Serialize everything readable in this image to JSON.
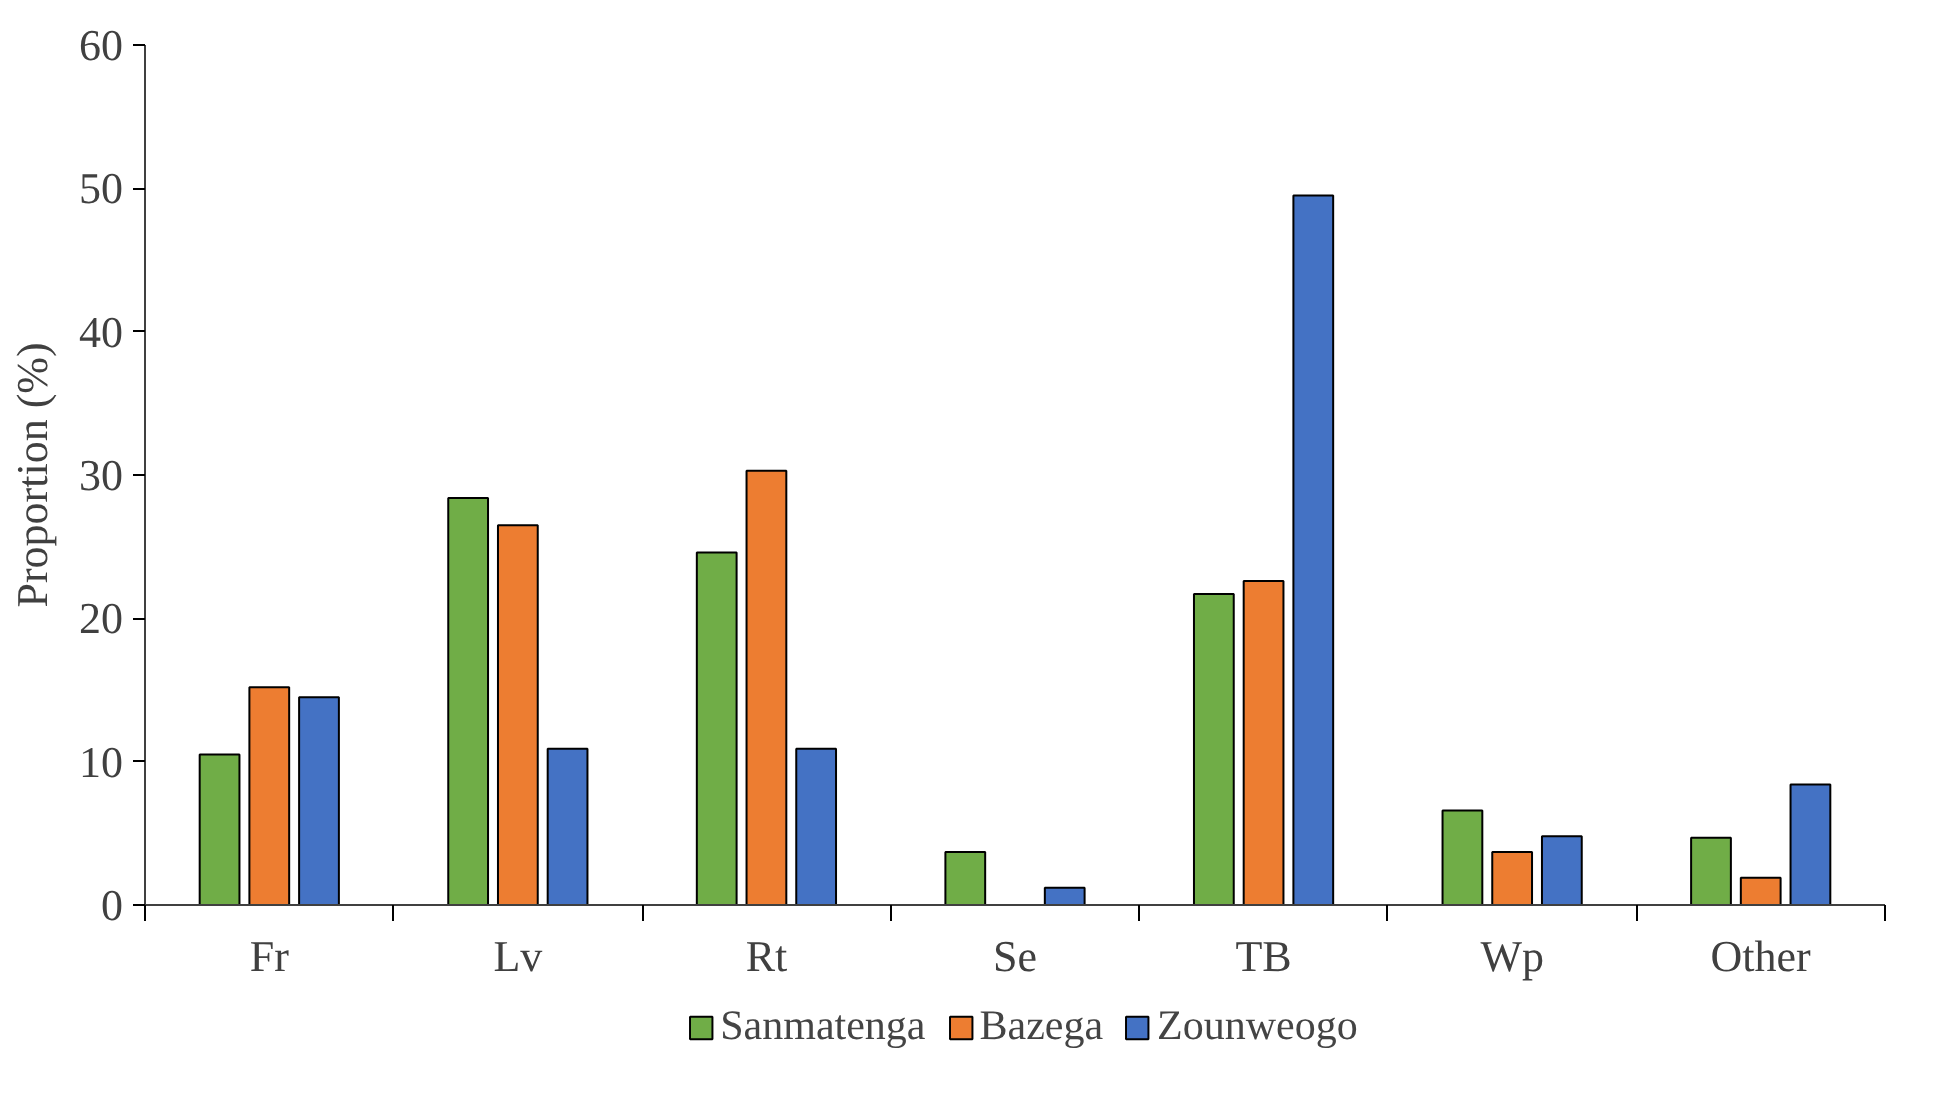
{
  "chart_data": {
    "type": "bar",
    "ylabel": "Proportion (%)",
    "categories": [
      "Fr",
      "Lv",
      "Rt",
      "Se",
      "TB",
      "Wp",
      "Other"
    ],
    "series": [
      {
        "name": "Sanmatenga",
        "color": "#70ad47",
        "values": [
          10.5,
          28.4,
          24.6,
          3.7,
          21.7,
          6.6,
          4.7
        ]
      },
      {
        "name": "Bazega",
        "color": "#ed7d31",
        "values": [
          15.2,
          26.5,
          30.3,
          0,
          22.6,
          3.7,
          1.9
        ]
      },
      {
        "name": "Zounweogo",
        "color": "#4472c4",
        "values": [
          14.5,
          10.9,
          10.9,
          1.2,
          49.5,
          4.8,
          8.4
        ]
      }
    ],
    "ylim": [
      0,
      60
    ],
    "yticks": [
      0,
      10,
      20,
      30,
      40,
      50,
      60
    ],
    "grid": false,
    "legend": "bottom"
  }
}
